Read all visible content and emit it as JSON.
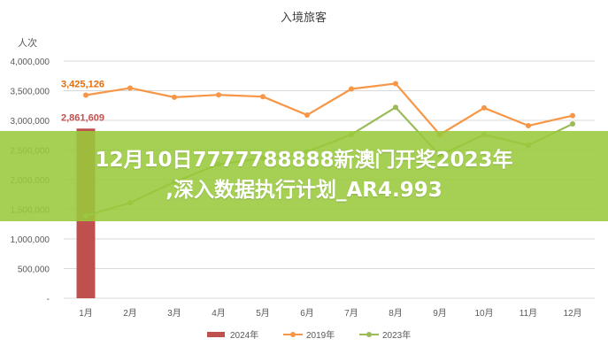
{
  "chart_data": {
    "type": "bar+line",
    "title": "入境旅客",
    "ylabel": "人次",
    "categories": [
      "1月",
      "2月",
      "3月",
      "4月",
      "5月",
      "6月",
      "7月",
      "8月",
      "9月",
      "10月",
      "11月",
      "12月"
    ],
    "ylim": [
      0,
      4000000
    ],
    "yticks": [
      "-",
      "500,000",
      "1,000,000",
      "1,500,000",
      "2,000,000",
      "2,500,000",
      "3,000,000",
      "3,500,000",
      "4,000,000"
    ],
    "grid": true,
    "legend_position": "bottom",
    "series": [
      {
        "name": "2024年",
        "kind": "bar",
        "color": "#c0504d",
        "values": [
          2861609,
          null,
          null,
          null,
          null,
          null,
          null,
          null,
          null,
          null,
          null,
          null
        ]
      },
      {
        "name": "2019年",
        "kind": "line",
        "color": "#f79646",
        "values": [
          3425126,
          3545000,
          3390000,
          3430000,
          3400000,
          3090000,
          3530000,
          3620000,
          2760000,
          3210000,
          2910000,
          3080000
        ]
      },
      {
        "name": "2023年",
        "kind": "line",
        "color": "#9bbb59",
        "values": [
          1390000,
          1610000,
          1960000,
          2260000,
          2360000,
          2470000,
          2760000,
          3220000,
          2410000,
          2760000,
          2580000,
          2940000
        ]
      }
    ],
    "data_labels": [
      {
        "series": "2019年",
        "index": 0,
        "text": "3,425,126"
      },
      {
        "series": "2024年",
        "index": 0,
        "text": "2,861,609"
      }
    ]
  },
  "overlay": {
    "line1": "12月10日7777788888新澳门开奖2023年",
    "line2": ",深入数据执行计划_AR4.993",
    "color": "#98c93c"
  }
}
